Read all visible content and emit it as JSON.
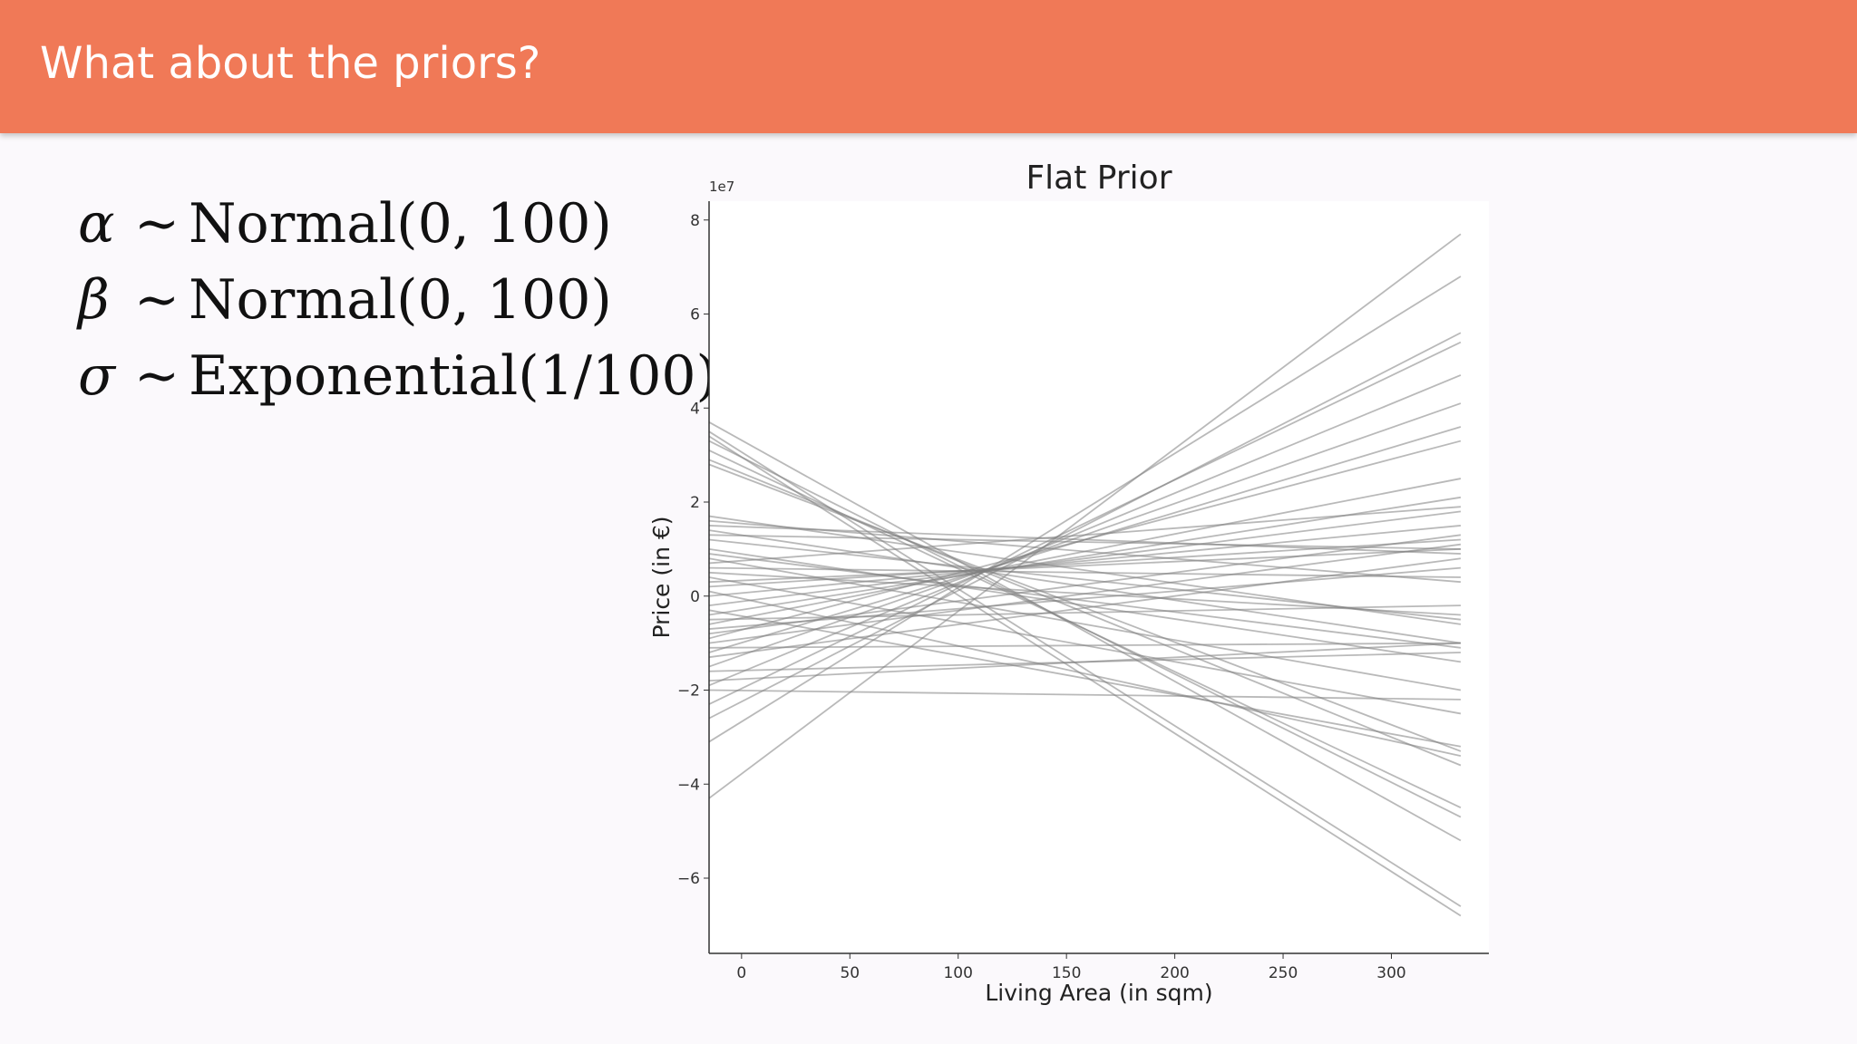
{
  "header": {
    "title": "What about the priors?"
  },
  "formulas": [
    {
      "symbol": "α",
      "tilde": "∼",
      "expr": "Normal(0, 100)"
    },
    {
      "symbol": "β",
      "tilde": "∼",
      "expr": "Normal(0, 100)"
    },
    {
      "symbol": "σ",
      "tilde": "∼",
      "expr": "Exponential(1/100)"
    }
  ],
  "colors": {
    "header_bg": "#f07957",
    "line": "#7f7f7f"
  },
  "chart_data": {
    "type": "line",
    "title": "Flat Prior",
    "xlabel": "Living Area (in sqm)",
    "ylabel": "Price (in €)",
    "y_scale_label": "1e7",
    "xlim": [
      -15,
      345
    ],
    "ylim": [
      -7.6,
      8.4
    ],
    "xticks": [
      0,
      50,
      100,
      150,
      200,
      250,
      300
    ],
    "yticks": [
      8,
      6,
      4,
      2,
      0,
      -2,
      -4,
      -6
    ],
    "grid": false,
    "x_range": [
      -15,
      332
    ],
    "series": [
      {
        "values": [
          -4.3,
          7.7
        ]
      },
      {
        "values": [
          -3.1,
          6.8
        ]
      },
      {
        "values": [
          -2.6,
          5.6
        ]
      },
      {
        "values": [
          -2.3,
          5.4
        ]
      },
      {
        "values": [
          -1.9,
          4.7
        ]
      },
      {
        "values": [
          -1.5,
          4.1
        ]
      },
      {
        "values": [
          -1.2,
          3.6
        ]
      },
      {
        "values": [
          -0.9,
          3.3
        ]
      },
      {
        "values": [
          -0.6,
          2.5
        ]
      },
      {
        "values": [
          -0.4,
          2.1
        ]
      },
      {
        "values": [
          -0.2,
          1.8
        ]
      },
      {
        "values": [
          0.0,
          1.5
        ]
      },
      {
        "values": [
          0.2,
          1.2
        ]
      },
      {
        "values": [
          0.3,
          1.0
        ]
      },
      {
        "values": [
          -1.0,
          1.1
        ]
      },
      {
        "values": [
          -1.3,
          0.8
        ]
      },
      {
        "values": [
          -0.7,
          0.6
        ]
      },
      {
        "values": [
          0.6,
          0.4
        ]
      },
      {
        "values": [
          1.3,
          1.0
        ]
      },
      {
        "values": [
          1.5,
          0.9
        ]
      },
      {
        "values": [
          1.6,
          0.3
        ]
      },
      {
        "values": [
          1.7,
          -0.6
        ]
      },
      {
        "values": [
          1.2,
          -0.5
        ]
      },
      {
        "values": [
          0.9,
          -1.1
        ]
      },
      {
        "values": [
          0.5,
          -0.4
        ]
      },
      {
        "values": [
          -0.5,
          -0.2
        ]
      },
      {
        "values": [
          -1.1,
          -1.0
        ]
      },
      {
        "values": [
          -1.6,
          -1.2
        ]
      },
      {
        "values": [
          -2.0,
          -2.2
        ]
      },
      {
        "values": [
          1.4,
          -1.0
        ]
      },
      {
        "values": [
          1.0,
          -1.4
        ]
      },
      {
        "values": [
          0.8,
          -2.0
        ]
      },
      {
        "values": [
          0.4,
          -2.5
        ]
      },
      {
        "values": [
          -0.3,
          -3.2
        ]
      },
      {
        "values": [
          0.1,
          -3.4
        ]
      },
      {
        "values": [
          2.9,
          -3.6
        ]
      },
      {
        "values": [
          2.8,
          -3.3
        ]
      },
      {
        "values": [
          3.1,
          -4.5
        ]
      },
      {
        "values": [
          3.3,
          -4.7
        ]
      },
      {
        "values": [
          3.7,
          -5.2
        ]
      },
      {
        "values": [
          3.5,
          -6.6
        ]
      },
      {
        "values": [
          3.4,
          -6.8
        ]
      },
      {
        "values": [
          -1.8,
          -1.0
        ]
      },
      {
        "values": [
          -0.8,
          1.3
        ]
      },
      {
        "values": [
          0.7,
          1.9
        ]
      }
    ]
  }
}
